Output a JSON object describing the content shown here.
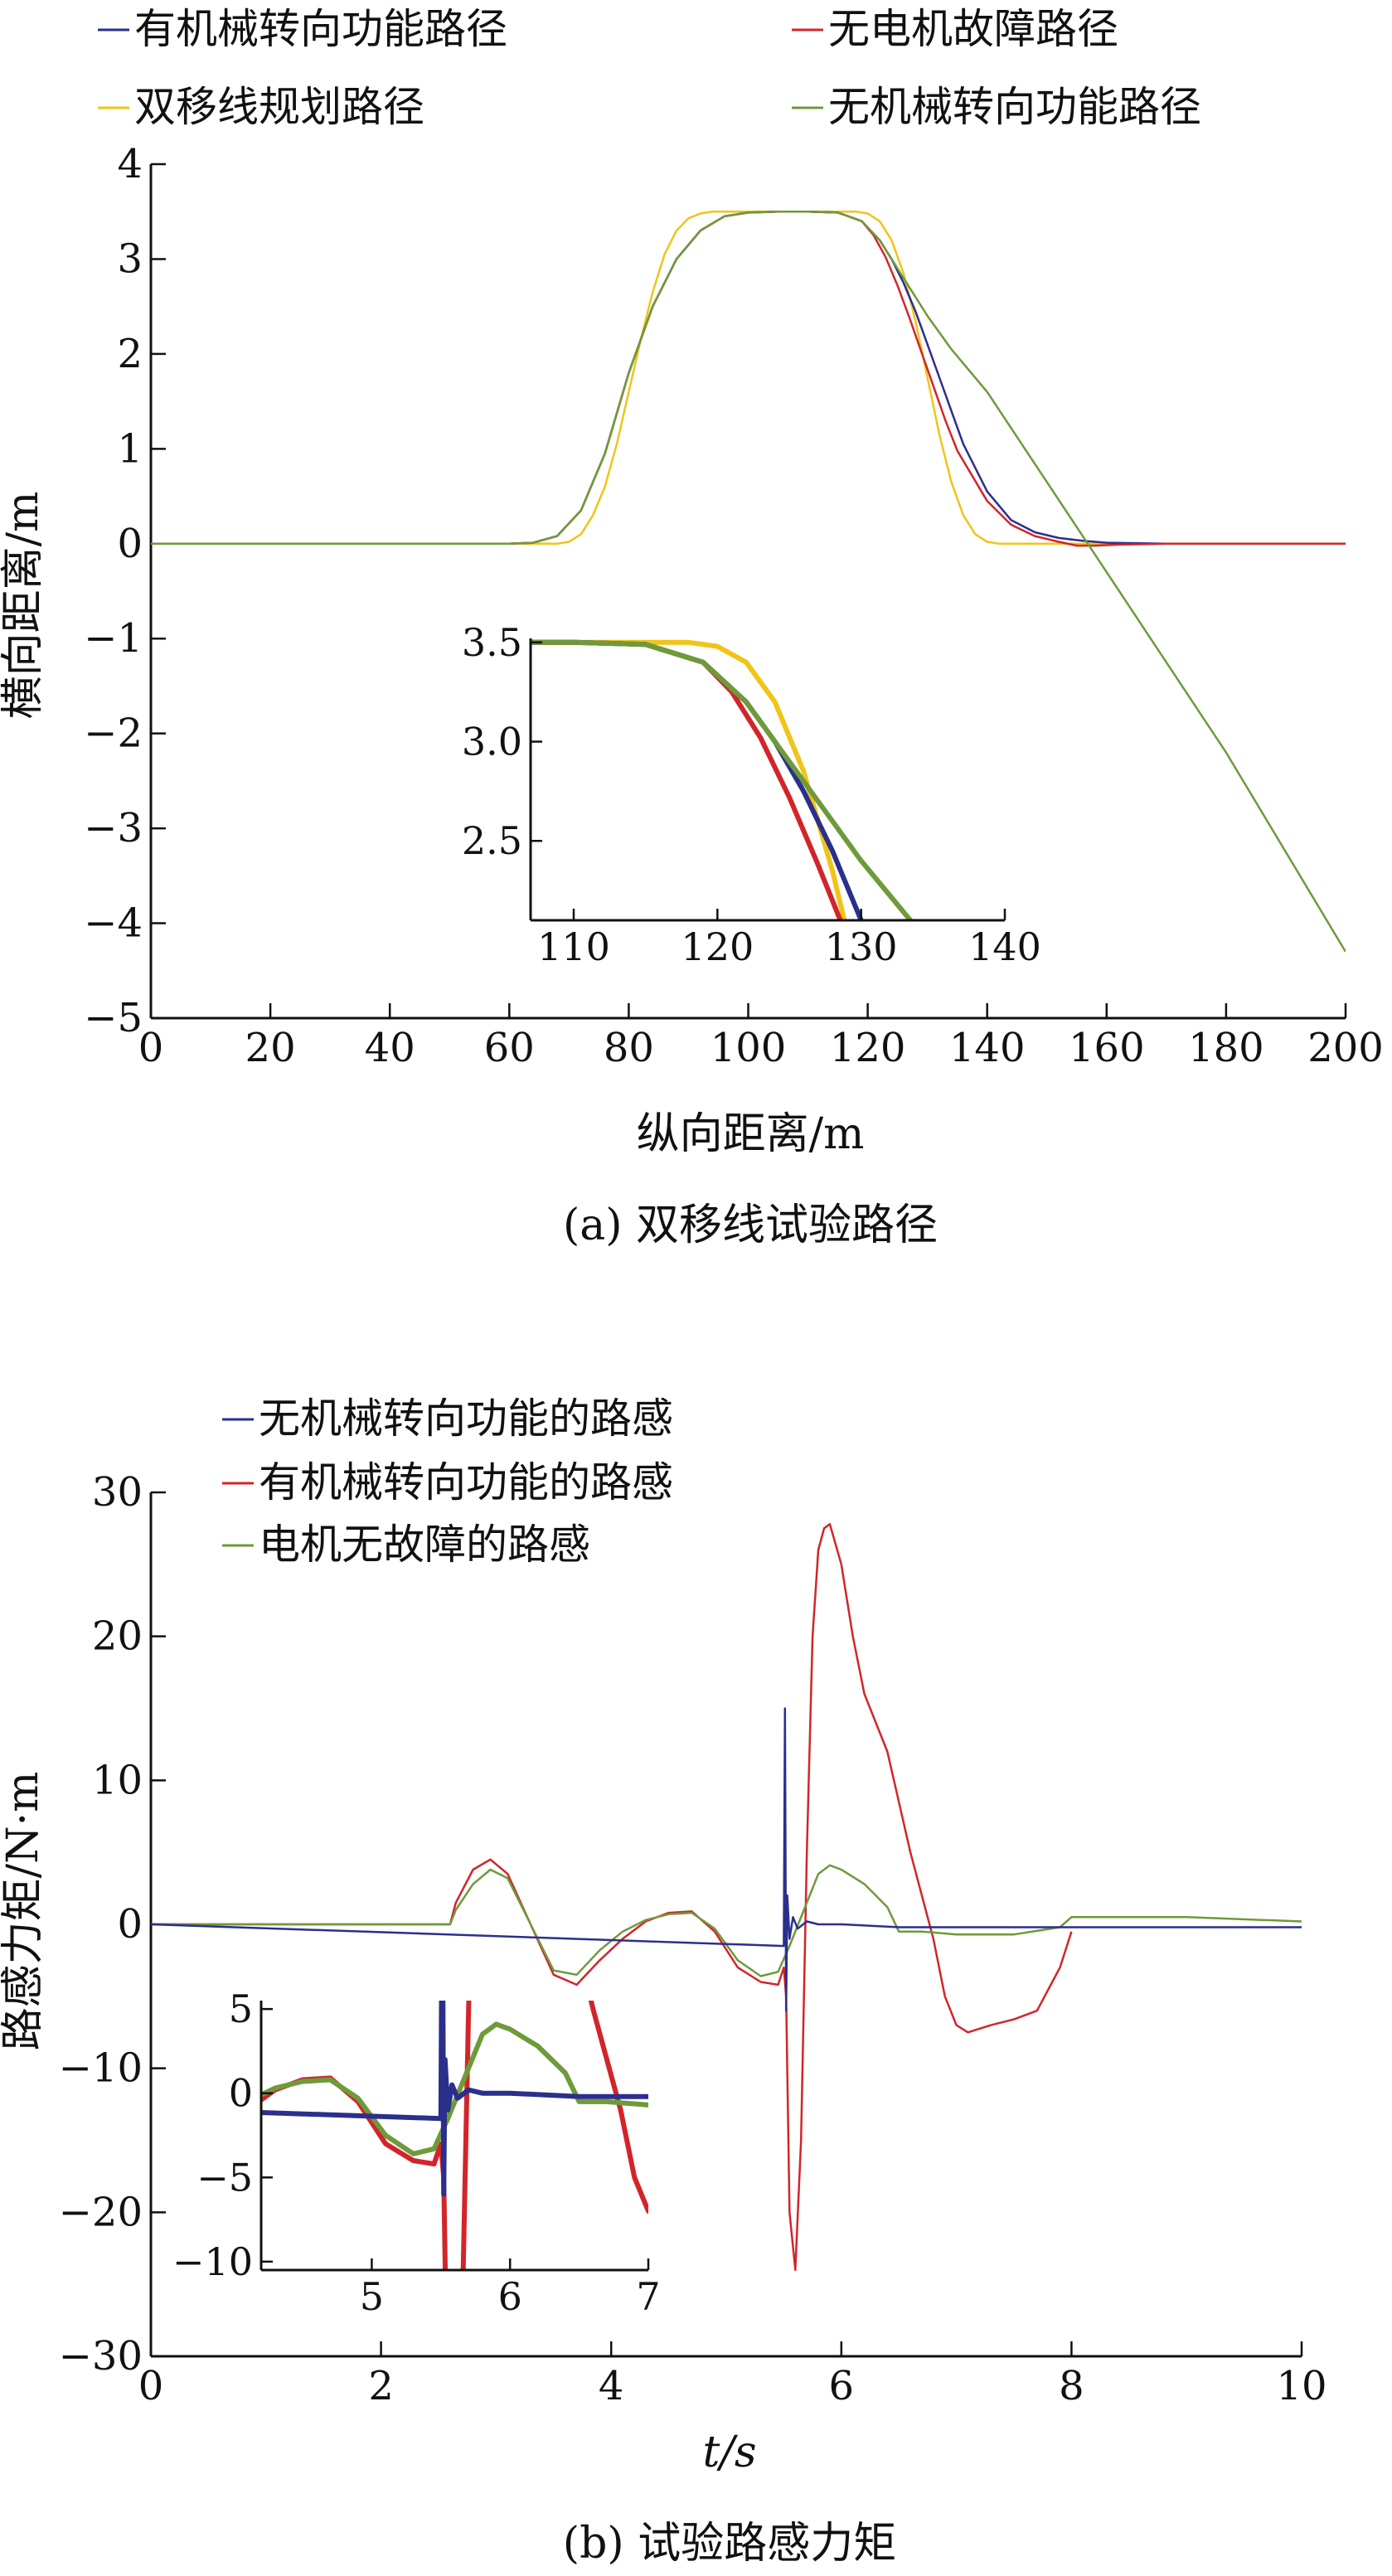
{
  "colors": {
    "mech": "#2b2f8c",
    "motor_ok": "#d2252a",
    "planned": "#f0c419",
    "no_mech": "#6e9a3a",
    "axis": "#111111"
  },
  "chart_data": [
    {
      "type": "line",
      "caption": "(a) 双移线试验路径",
      "xlabel": "纵向距离/m",
      "ylabel": "横向距离/m",
      "xlim": [
        0,
        200
      ],
      "ylim": [
        -5,
        4
      ],
      "xticks": [
        0,
        20,
        40,
        60,
        80,
        100,
        120,
        140,
        160,
        180,
        200
      ],
      "yticks": [
        -5,
        -4,
        -3,
        -2,
        -1,
        0,
        1,
        2,
        3,
        4
      ],
      "ytick_labels": [
        "−5",
        "−4",
        "−3",
        "−2",
        "−1",
        "0",
        "1",
        "2",
        "3",
        "4"
      ],
      "legend": [
        "有机械转向功能路径",
        "无电机故障路径",
        "双移线规划路径",
        "无机械转向功能路径"
      ],
      "series": [
        {
          "name": "有机械转向功能路径",
          "color_key": "mech",
          "x": [
            0,
            60,
            64,
            68,
            72,
            76,
            80,
            84,
            88,
            92,
            96,
            100,
            105,
            110,
            115,
            119,
            122,
            124,
            126,
            128,
            130,
            132,
            134,
            136,
            140,
            144,
            148,
            152,
            156,
            160,
            170,
            180,
            200
          ],
          "y": [
            0,
            0,
            0.01,
            0.08,
            0.35,
            0.95,
            1.8,
            2.5,
            3.0,
            3.3,
            3.45,
            3.49,
            3.5,
            3.5,
            3.49,
            3.4,
            3.2,
            3.0,
            2.75,
            2.45,
            2.1,
            1.75,
            1.4,
            1.05,
            0.55,
            0.25,
            0.12,
            0.06,
            0.03,
            0.01,
            0,
            0,
            0
          ]
        },
        {
          "name": "无电机故障路径",
          "color_key": "motor_ok",
          "x": [
            0,
            60,
            64,
            68,
            72,
            76,
            80,
            84,
            88,
            92,
            96,
            100,
            105,
            110,
            115,
            119,
            121,
            123,
            125,
            127,
            129,
            131,
            133,
            135,
            140,
            144,
            148,
            152,
            155,
            158,
            162,
            170,
            180,
            200
          ],
          "y": [
            0,
            0,
            0.01,
            0.08,
            0.35,
            0.95,
            1.8,
            2.5,
            3.0,
            3.3,
            3.45,
            3.49,
            3.5,
            3.5,
            3.49,
            3.4,
            3.25,
            3.02,
            2.72,
            2.38,
            2.02,
            1.66,
            1.3,
            0.98,
            0.45,
            0.2,
            0.08,
            0.02,
            -0.02,
            -0.02,
            -0.01,
            0,
            0,
            0
          ]
        },
        {
          "name": "双移线规划路径",
          "color_key": "planned",
          "x": [
            0,
            68,
            70,
            72,
            74,
            76,
            78,
            80,
            82,
            84,
            86,
            88,
            90,
            92,
            94,
            118,
            120,
            122,
            124,
            126,
            128,
            130,
            132,
            134,
            136,
            138,
            140,
            142,
            144,
            200
          ],
          "y": [
            0,
            0,
            0.02,
            0.1,
            0.3,
            0.6,
            1.05,
            1.6,
            2.15,
            2.65,
            3.05,
            3.3,
            3.43,
            3.48,
            3.5,
            3.5,
            3.48,
            3.4,
            3.2,
            2.85,
            2.35,
            1.75,
            1.15,
            0.65,
            0.3,
            0.1,
            0.02,
            0.0,
            0,
            0
          ]
        },
        {
          "name": "无机械转向功能路径",
          "color_key": "no_mech",
          "x": [
            0,
            60,
            64,
            68,
            72,
            76,
            80,
            84,
            88,
            92,
            96,
            100,
            105,
            110,
            115,
            119,
            122,
            126,
            130,
            134,
            140,
            160,
            180,
            200
          ],
          "y": [
            0,
            0,
            0.01,
            0.08,
            0.35,
            0.95,
            1.8,
            2.5,
            3.0,
            3.3,
            3.45,
            3.49,
            3.5,
            3.5,
            3.49,
            3.4,
            3.2,
            2.8,
            2.4,
            2.05,
            1.6,
            -0.3,
            -2.2,
            -4.3
          ]
        }
      ],
      "inset": {
        "xlim": [
          107,
          140
        ],
        "ylim": [
          2.1,
          3.52
        ],
        "xticks": [
          110,
          120,
          130,
          140
        ],
        "yticks": [
          2.5,
          3.0,
          3.5
        ],
        "ytick_labels": [
          "2.5",
          "3.0",
          "3.5"
        ]
      }
    },
    {
      "type": "line",
      "caption": "(b) 试验路感力矩",
      "xlabel": "t/s",
      "ylabel": "路感力矩/N·m",
      "xlim": [
        0,
        10
      ],
      "ylim": [
        -30,
        30
      ],
      "xticks": [
        0,
        2,
        4,
        6,
        8,
        10
      ],
      "yticks": [
        -30,
        -20,
        -10,
        0,
        10,
        20,
        30
      ],
      "ytick_labels": [
        "−30",
        "−20",
        "−10",
        "0",
        "10",
        "20",
        "30"
      ],
      "legend": [
        "无机械转向功能的路感",
        "有机械转向功能的路感",
        "电机无故障的路感"
      ],
      "series": [
        {
          "name": "无机械转向功能的路感",
          "color_key": "mech",
          "x": [
            0,
            5.5,
            5.51,
            5.52,
            5.53,
            5.55,
            5.58,
            5.62,
            5.7,
            5.8,
            6.0,
            6.5,
            7.0,
            8.0,
            9.0,
            10.0
          ],
          "y": [
            0,
            -1.5,
            15,
            -6,
            2,
            -1.0,
            0.5,
            -0.3,
            0.2,
            0,
            0,
            -0.2,
            -0.2,
            -0.2,
            -0.2,
            -0.2
          ]
        },
        {
          "name": "有机械转向功能的路感",
          "color_key": "motor_ok",
          "x": [
            0,
            2.6,
            2.65,
            2.8,
            2.95,
            3.1,
            3.3,
            3.5,
            3.7,
            3.9,
            4.1,
            4.3,
            4.5,
            4.7,
            4.9,
            5.1,
            5.3,
            5.45,
            5.5,
            5.52,
            5.55,
            5.6,
            5.65,
            5.7,
            5.75,
            5.8,
            5.85,
            5.9,
            6.0,
            6.1,
            6.2,
            6.4,
            6.6,
            6.8,
            6.9,
            7.0,
            7.1,
            7.3,
            7.5,
            7.7,
            7.9,
            8.0
          ],
          "y": [
            0,
            0,
            1.5,
            3.8,
            4.5,
            3.5,
            0,
            -3.5,
            -4.2,
            -2.5,
            -1.0,
            0.2,
            0.8,
            0.9,
            -0.5,
            -3.0,
            -4.0,
            -4.2,
            -3.0,
            -5.0,
            -20.0,
            -24.0,
            -15.0,
            5.0,
            20.0,
            26.0,
            27.5,
            27.8,
            25.0,
            20.0,
            16.0,
            12.0,
            5.0,
            -1.0,
            -5.0,
            -7.0,
            -7.5,
            -7.0,
            -6.6,
            -6.0,
            -3.0,
            -0.5
          ]
        },
        {
          "name": "电机无故障的路感",
          "color_key": "no_mech",
          "x": [
            0,
            2.6,
            2.65,
            2.8,
            2.95,
            3.1,
            3.3,
            3.5,
            3.7,
            3.9,
            4.1,
            4.3,
            4.5,
            4.7,
            4.9,
            5.1,
            5.3,
            5.45,
            5.55,
            5.7,
            5.8,
            5.9,
            6.0,
            6.1,
            6.2,
            6.4,
            6.5,
            6.7,
            7.0,
            7.5,
            7.9,
            8.0,
            9.0,
            10.0
          ],
          "y": [
            0,
            0,
            1.0,
            2.8,
            3.8,
            3.2,
            0,
            -3.2,
            -3.5,
            -1.8,
            -0.5,
            0.3,
            0.7,
            0.8,
            -0.3,
            -2.5,
            -3.6,
            -3.3,
            -1.5,
            1.5,
            3.5,
            4.1,
            3.8,
            3.3,
            2.8,
            1.2,
            -0.5,
            -0.5,
            -0.7,
            -0.7,
            -0.2,
            0.5,
            0.5,
            0.2
          ]
        }
      ],
      "inset": {
        "xlim": [
          4.2,
          7.0
        ],
        "ylim": [
          -10.5,
          5.5
        ],
        "xticks": [
          5,
          6,
          7
        ],
        "yticks": [
          -10,
          -5,
          0,
          5
        ],
        "ytick_labels": [
          "−10",
          "−5",
          "0",
          "5"
        ]
      }
    }
  ]
}
